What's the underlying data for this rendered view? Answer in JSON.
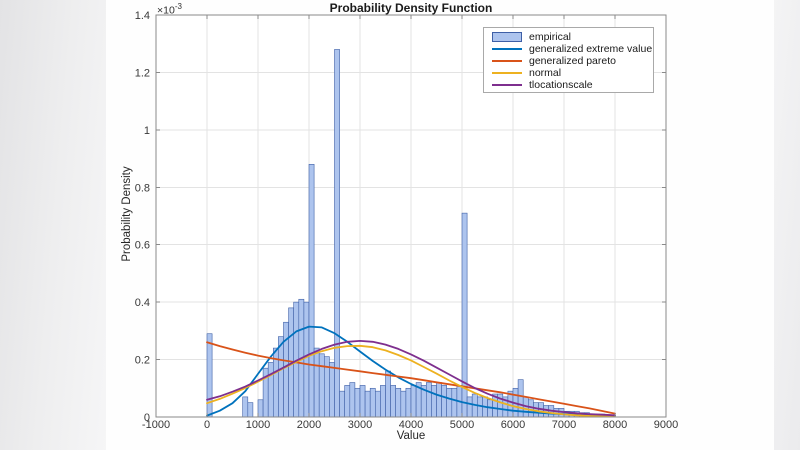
{
  "figure": {
    "title": "Probability Density Function",
    "xlabel": "Value",
    "ylabel": "Probability Density",
    "exponent_base": "×10",
    "exponent_power": "-3"
  },
  "legend": {
    "items": [
      {
        "label": "empirical",
        "type": "patch",
        "color": "#ADC4EE",
        "edge": "#3E5FA6"
      },
      {
        "label": "generalized extreme value",
        "type": "line",
        "color": "#0072BD"
      },
      {
        "label": "generalized pareto",
        "type": "line",
        "color": "#D95319"
      },
      {
        "label": "normal",
        "type": "line",
        "color": "#EDB120"
      },
      {
        "label": "tlocationscale",
        "type": "line",
        "color": "#7E2F8E"
      }
    ]
  },
  "chart_data": {
    "type": "histogram+lines",
    "title": "Probability Density Function",
    "xlabel": "Value",
    "ylabel": "Probability Density",
    "y_scale_exponent": -3,
    "xlim": [
      -1000,
      9000
    ],
    "ylim_e3": [
      0,
      1.4
    ],
    "x_ticks": [
      -1000,
      0,
      1000,
      2000,
      3000,
      4000,
      5000,
      6000,
      7000,
      8000,
      9000
    ],
    "y_ticks_e3": [
      0,
      0.2,
      0.4,
      0.6,
      0.8,
      1,
      1.2,
      1.4
    ],
    "grid": true,
    "legend_position": "top-right",
    "colors": {
      "grid": "#e3e3e3",
      "axis_box": "#8a8a8a",
      "tick_text": "#383838"
    },
    "histogram": {
      "name": "empirical",
      "bin_start": 0,
      "bin_width": 100,
      "face_color": "#ADC4EE",
      "edge_color": "#3E5FA6",
      "heights_e3": [
        0.29,
        0,
        0,
        0,
        0,
        0,
        0,
        0.07,
        0.05,
        0,
        0.06,
        0.17,
        0.19,
        0.24,
        0.28,
        0.33,
        0.38,
        0.4,
        0.41,
        0.4,
        0.88,
        0.24,
        0.22,
        0.21,
        0.19,
        1.28,
        0.09,
        0.11,
        0.12,
        0.1,
        0.11,
        0.09,
        0.1,
        0.09,
        0.11,
        0.16,
        0.11,
        0.1,
        0.09,
        0.1,
        0.11,
        0.12,
        0.11,
        0.12,
        0.11,
        0.12,
        0.11,
        0.1,
        0.1,
        0.11,
        0.71,
        0.07,
        0.08,
        0.07,
        0.07,
        0.06,
        0.08,
        0.08,
        0.07,
        0.09,
        0.1,
        0.13,
        0.07,
        0.06,
        0.05,
        0.05,
        0.04,
        0.04,
        0.03,
        0.03,
        0.02,
        0.02,
        0.02,
        0.015,
        0.015,
        0.01,
        0.01,
        0.01,
        0.008,
        0.005
      ]
    },
    "series": [
      {
        "name": "generalized extreme value",
        "color": "#0072BD",
        "x_start": 0,
        "x_step": 250,
        "values_e3": [
          0.005,
          0.022,
          0.048,
          0.09,
          0.15,
          0.21,
          0.262,
          0.298,
          0.315,
          0.312,
          0.292,
          0.262,
          0.228,
          0.195,
          0.165,
          0.138,
          0.115,
          0.095,
          0.078,
          0.064,
          0.052,
          0.042,
          0.034,
          0.028,
          0.022,
          0.018,
          0.015,
          0.012,
          0.01,
          0.008,
          0.007,
          0.006,
          0.005
        ]
      },
      {
        "name": "generalized pareto",
        "color": "#D95319",
        "x_start": 0,
        "x_step": 250,
        "values_e3": [
          0.26,
          0.247,
          0.235,
          0.224,
          0.214,
          0.205,
          0.197,
          0.19,
          0.183,
          0.177,
          0.171,
          0.165,
          0.159,
          0.153,
          0.147,
          0.141,
          0.135,
          0.128,
          0.121,
          0.114,
          0.107,
          0.1,
          0.093,
          0.086,
          0.078,
          0.07,
          0.062,
          0.054,
          0.046,
          0.038,
          0.03,
          0.021,
          0.012
        ]
      },
      {
        "name": "normal",
        "color": "#EDB120",
        "x_start": 0,
        "x_step": 250,
        "values_e3": [
          0.048,
          0.063,
          0.081,
          0.101,
          0.123,
          0.146,
          0.17,
          0.192,
          0.213,
          0.229,
          0.241,
          0.247,
          0.248,
          0.243,
          0.232,
          0.216,
          0.197,
          0.174,
          0.151,
          0.127,
          0.105,
          0.084,
          0.066,
          0.051,
          0.038,
          0.028,
          0.02,
          0.014,
          0.009,
          0.006,
          0.004,
          0.003,
          0.002
        ]
      },
      {
        "name": "tlocationscale",
        "color": "#7E2F8E",
        "x_start": 0,
        "x_step": 250,
        "values_e3": [
          0.06,
          0.072,
          0.088,
          0.106,
          0.127,
          0.149,
          0.172,
          0.196,
          0.218,
          0.237,
          0.252,
          0.262,
          0.265,
          0.262,
          0.252,
          0.237,
          0.218,
          0.196,
          0.172,
          0.148,
          0.124,
          0.101,
          0.081,
          0.064,
          0.05,
          0.038,
          0.029,
          0.022,
          0.017,
          0.013,
          0.01,
          0.008,
          0.006
        ]
      }
    ]
  }
}
